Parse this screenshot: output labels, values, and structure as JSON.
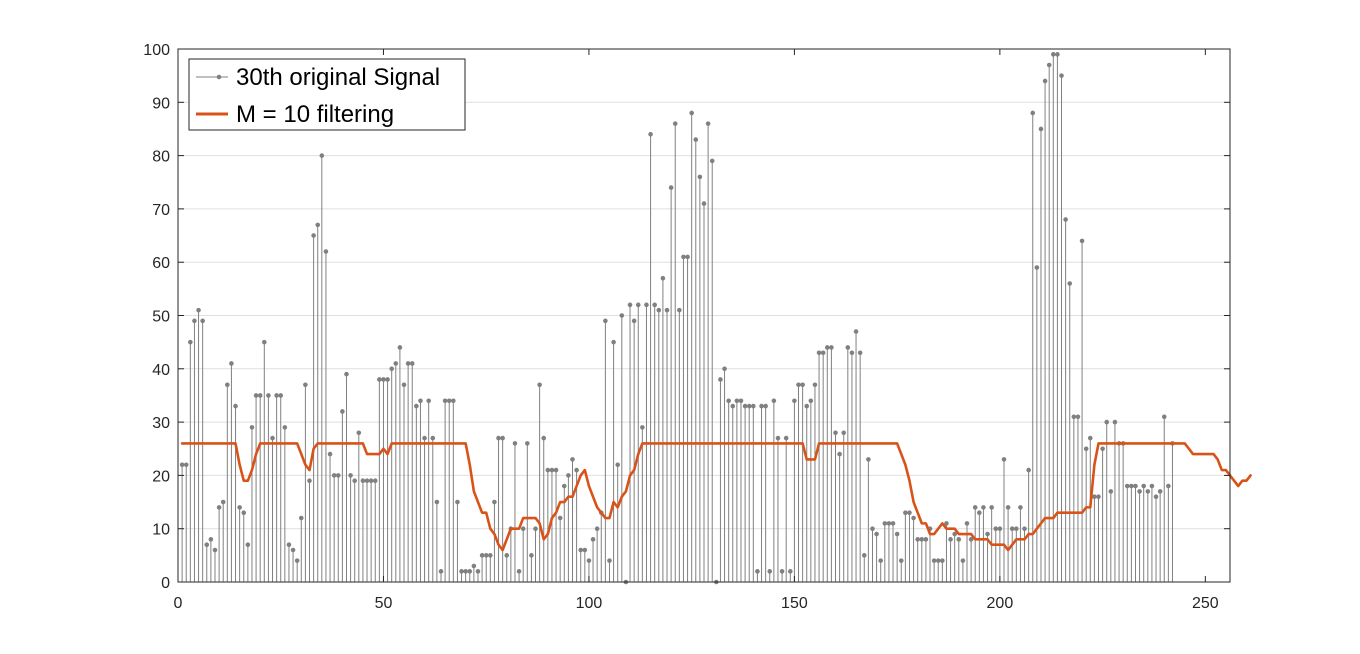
{
  "chart_data": {
    "type": "stem+line",
    "title": "",
    "xlabel": "",
    "ylabel": "",
    "xlim": [
      0,
      256
    ],
    "ylim": [
      0,
      100
    ],
    "x_ticks": [
      0,
      50,
      100,
      150,
      200,
      250
    ],
    "y_ticks": [
      0,
      10,
      20,
      30,
      40,
      50,
      60,
      70,
      80,
      90,
      100
    ],
    "grid": "y",
    "legend_placement": "top-left",
    "series": [
      {
        "name": "30th original Signal",
        "kind": "stem",
        "color": "#808080",
        "x_start": 1,
        "values": [
          22,
          22,
          45,
          49,
          51,
          49,
          7,
          8,
          6,
          14,
          15,
          37,
          41,
          33,
          14,
          13,
          7,
          29,
          35,
          35,
          45,
          35,
          27,
          35,
          35,
          29,
          7,
          6,
          4,
          12,
          37,
          19,
          65,
          67,
          80,
          62,
          24,
          20,
          20,
          32,
          39,
          20,
          19,
          28,
          19,
          19,
          19,
          19,
          38,
          38,
          38,
          40,
          41,
          44,
          37,
          41,
          41,
          33,
          34,
          27,
          34,
          27,
          15,
          2,
          34,
          34,
          34,
          15,
          2,
          2,
          2,
          3,
          2,
          5,
          5,
          5,
          15,
          27,
          27,
          5,
          10,
          26,
          2,
          10,
          26,
          5,
          10,
          37,
          27,
          21,
          21,
          21,
          12,
          18,
          20,
          23,
          21,
          6,
          6,
          4,
          8,
          10,
          13,
          49,
          4,
          45,
          22,
          50,
          0,
          52,
          49,
          52,
          29,
          52,
          84,
          52,
          51,
          57,
          51,
          74,
          86,
          51,
          61,
          61,
          88,
          83,
          76,
          71,
          86,
          79,
          0,
          38,
          40,
          34,
          33,
          34,
          34,
          33,
          33,
          33,
          2,
          33,
          33,
          2,
          34,
          27,
          2,
          27,
          2,
          34,
          37,
          37,
          33,
          34,
          37,
          43,
          43,
          44,
          44,
          28,
          24,
          28,
          44,
          43,
          47,
          43,
          5,
          23,
          10,
          9,
          4,
          11,
          11,
          11,
          9,
          4,
          13,
          13,
          12,
          8,
          8,
          8,
          10,
          4,
          4,
          4,
          11,
          8,
          9,
          8,
          4,
          11,
          8,
          14,
          13,
          14,
          9,
          14,
          10,
          10,
          23,
          14,
          10,
          10,
          14,
          10,
          21,
          88,
          59,
          85,
          94,
          97,
          99,
          99,
          95,
          68,
          56,
          31,
          31,
          64,
          25,
          27,
          16,
          16,
          25,
          30,
          17,
          30,
          26,
          26,
          18,
          18,
          18,
          17,
          18,
          17,
          18,
          16,
          17,
          31,
          18,
          26
        ]
      },
      {
        "name": "M = 10 filtering",
        "kind": "line",
        "color": "#D95319",
        "x_start": 1,
        "values": [
          26,
          26,
          26,
          26,
          26,
          26,
          26,
          26,
          26,
          26,
          26,
          26,
          26,
          26,
          22,
          19,
          19,
          21,
          24,
          26,
          26,
          26,
          26,
          26,
          26,
          26,
          26,
          26,
          26,
          24,
          22,
          21,
          25,
          26,
          26,
          26,
          26,
          26,
          26,
          26,
          26,
          26,
          26,
          26,
          26,
          24,
          24,
          24,
          24,
          25,
          24,
          26,
          26,
          26,
          26,
          26,
          26,
          26,
          26,
          26,
          26,
          26,
          26,
          26,
          26,
          26,
          26,
          26,
          26,
          26,
          22,
          17,
          15,
          13,
          13,
          10,
          9,
          7,
          6,
          8,
          10,
          10,
          10,
          12,
          12,
          12,
          12,
          11,
          8,
          9,
          12,
          13,
          15,
          15,
          16,
          16,
          18,
          20,
          21,
          18,
          16,
          14,
          13,
          12,
          12,
          15,
          14,
          16,
          17,
          20,
          21,
          24,
          26,
          26,
          26,
          26,
          26,
          26,
          26,
          26,
          26,
          26,
          26,
          26,
          26,
          26,
          26,
          26,
          26,
          26,
          26,
          26,
          26,
          26,
          26,
          26,
          26,
          26,
          26,
          26,
          26,
          26,
          26,
          26,
          26,
          26,
          26,
          26,
          26,
          26,
          26,
          26,
          23,
          23,
          23,
          26,
          26,
          26,
          26,
          26,
          26,
          26,
          26,
          26,
          26,
          26,
          26,
          26,
          26,
          26,
          26,
          26,
          26,
          26,
          26,
          24,
          22,
          19,
          15,
          13,
          11,
          11,
          9,
          9,
          10,
          11,
          10,
          10,
          10,
          9,
          9,
          9,
          9,
          8,
          8,
          8,
          8,
          7,
          7,
          7,
          7,
          6,
          7,
          8,
          8,
          8,
          9,
          9,
          10,
          11,
          12,
          12,
          12,
          13,
          13,
          13,
          13,
          13,
          13,
          13,
          14,
          14,
          22,
          26,
          26,
          26,
          26,
          26,
          26,
          26,
          26,
          26,
          26,
          26,
          26,
          26,
          26,
          26,
          26,
          26,
          26,
          26,
          26,
          26,
          26,
          25,
          24,
          24,
          24,
          24,
          24,
          24,
          23,
          21,
          21,
          20,
          19,
          18,
          19,
          19,
          20
        ]
      }
    ]
  }
}
